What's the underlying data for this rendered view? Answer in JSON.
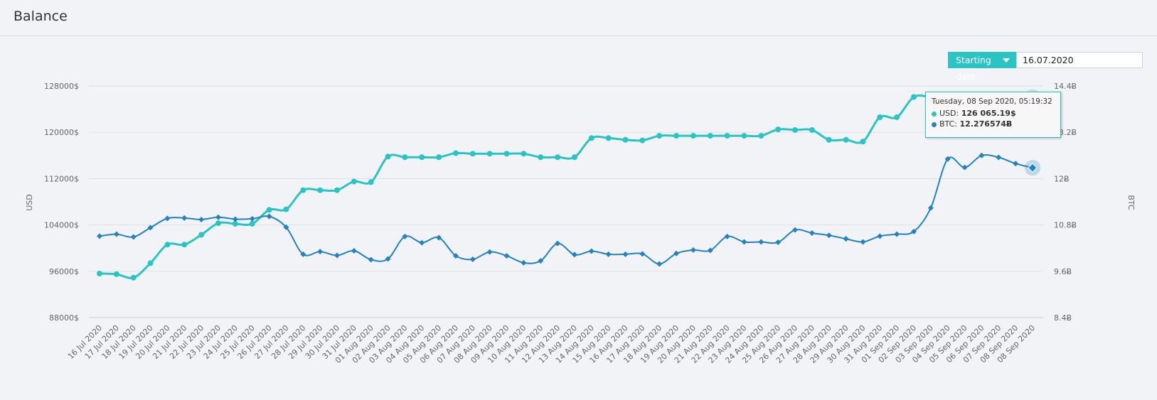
{
  "header": {
    "title": "Balance"
  },
  "controls": {
    "starting_date_label": "Starting date",
    "starting_date_value": "16.07.2020"
  },
  "tooltip": {
    "date": "Tuesday, 08 Sep 2020, 05:19:32",
    "usd_label": "USD:",
    "usd_value": "126 065.19$",
    "btc_label": "BTC:",
    "btc_value": "12.276574Ƀ"
  },
  "colors": {
    "usd": "#2bc4c4",
    "btc": "#2382c2",
    "grid": "#dfe1e6",
    "axis_text": "#666666"
  },
  "chart_data": {
    "type": "line",
    "categories": [
      "16 Jul 2020",
      "17 Jul 2020",
      "18 Jul 2020",
      "19 Jul 2020",
      "20 Jul 2020",
      "21 Jul 2020",
      "22 Jul 2020",
      "23 Jul 2020",
      "24 Jul 2020",
      "25 Jul 2020",
      "26 Jul 2020",
      "27 Jul 2020",
      "28 Jul 2020",
      "29 Jul 2020",
      "30 Jul 2020",
      "31 Jul 2020",
      "01 Aug 2020",
      "02 Aug 2020",
      "03 Aug 2020",
      "04 Aug 2020",
      "05 Aug 2020",
      "06 Aug 2020",
      "07 Aug 2020",
      "08 Aug 2020",
      "09 Aug 2020",
      "10 Aug 2020",
      "11 Aug 2020",
      "12 Aug 2020",
      "13 Aug 2020",
      "14 Aug 2020",
      "15 Aug 2020",
      "16 Aug 2020",
      "17 Aug 2020",
      "18 Aug 2020",
      "19 Aug 2020",
      "20 Aug 2020",
      "21 Aug 2020",
      "22 Aug 2020",
      "23 Aug 2020",
      "24 Aug 2020",
      "25 Aug 2020",
      "26 Aug 2020",
      "27 Aug 2020",
      "28 Aug 2020",
      "29 Aug 2020",
      "30 Aug 2020",
      "31 Aug 2020",
      "01 Sep 2020",
      "02 Sep 2020",
      "03 Sep 2020",
      "04 Sep 2020",
      "05 Sep 2020",
      "06 Sep 2020",
      "07 Sep 2020",
      "08 Sep 2020",
      "08 Sep 2020"
    ],
    "series": [
      {
        "name": "USD",
        "axis": "left",
        "marker": "circle",
        "values": [
          95600,
          95500,
          94900,
          97400,
          100600,
          100600,
          102300,
          104300,
          104200,
          104200,
          106600,
          106700,
          110000,
          110000,
          110000,
          111500,
          111400,
          115800,
          115700,
          115700,
          115700,
          116400,
          116300,
          116300,
          116300,
          116300,
          115700,
          115700,
          115700,
          119000,
          119000,
          118700,
          118600,
          119400,
          119400,
          119400,
          119400,
          119400,
          119400,
          119400,
          120500,
          120400,
          120400,
          118700,
          118700,
          118400,
          122600,
          122600,
          126100,
          126100,
          126100,
          126100,
          126100,
          126100,
          126100,
          126100
        ]
      },
      {
        "name": "BTC",
        "axis": "right",
        "marker": "diamond",
        "values": [
          10.51,
          10.56,
          10.49,
          10.73,
          10.97,
          10.98,
          10.94,
          11.0,
          10.95,
          10.96,
          11.02,
          10.74,
          10.04,
          10.11,
          10.01,
          10.13,
          9.9,
          9.92,
          10.5,
          10.34,
          10.47,
          10.0,
          9.91,
          10.1,
          10.0,
          9.82,
          9.87,
          10.32,
          10.03,
          10.12,
          10.04,
          10.04,
          10.05,
          9.79,
          10.06,
          10.15,
          10.14,
          10.5,
          10.36,
          10.36,
          10.35,
          10.67,
          10.59,
          10.53,
          10.44,
          10.36,
          10.51,
          10.56,
          10.63,
          11.24,
          12.51,
          12.29,
          12.6,
          12.55,
          12.39,
          12.28
        ]
      }
    ],
    "y_left": {
      "label": "USD",
      "min": 88000,
      "max": 128000,
      "ticks": [
        "128000$",
        "120000$",
        "112000$",
        "104000$",
        "96000$",
        "88000$"
      ]
    },
    "y_right": {
      "label": "BTC",
      "min": 8.4,
      "max": 14.4,
      "ticks": [
        "14.4Ƀ",
        "13.2Ƀ",
        "12Ƀ",
        "10.8Ƀ",
        "9.6Ƀ",
        "8.4Ƀ"
      ]
    },
    "grid": true
  }
}
